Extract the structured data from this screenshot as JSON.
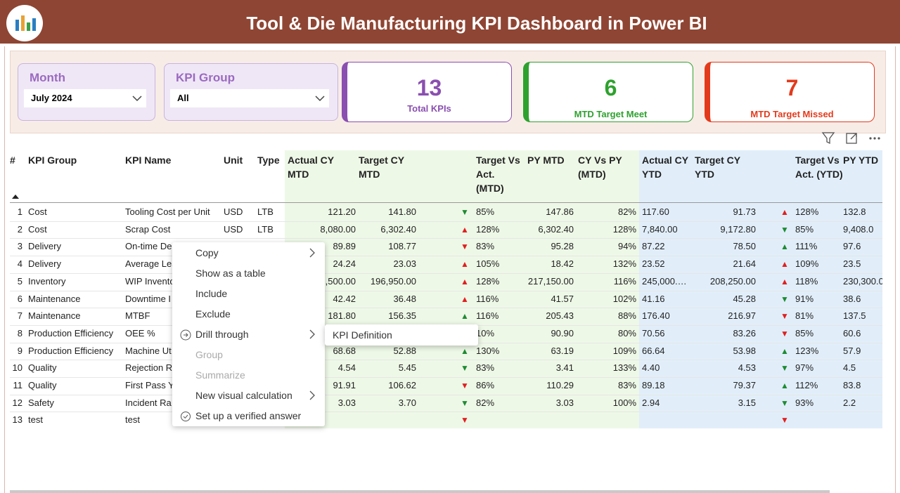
{
  "header": {
    "title": "Tool & Die Manufacturing KPI Dashboard in Power BI"
  },
  "slicers": [
    {
      "label": "Month",
      "value": "July 2024"
    },
    {
      "label": "KPI Group",
      "value": "All"
    }
  ],
  "cards": [
    {
      "value": 13,
      "label": "Total KPIs",
      "color": "#8a4fb0"
    },
    {
      "value": 6,
      "label": "MTD Target Meet",
      "color": "#2ea12e"
    },
    {
      "value": 7,
      "label": "MTD Target Missed",
      "color": "#e33a1c"
    }
  ],
  "table": {
    "columns": [
      "#",
      "KPI Group",
      "KPI Name",
      "Unit",
      "Type",
      "Actual CY MTD",
      "Target CY MTD",
      null,
      "Target Vs Act. (MTD)",
      "PY MTD",
      "CY Vs PY (MTD)",
      "Actual CY YTD",
      "Target CY YTD",
      null,
      "Target Vs Act. (YTD)",
      "PY YTD"
    ],
    "rows": [
      {
        "cells": [
          1,
          "Cost",
          "Tooling Cost per Unit",
          "USD",
          "LTB",
          "121.20",
          "141.80",
          "▼",
          "85%",
          "147.86",
          "82%",
          "117.60",
          "91.73",
          "▲",
          "128%",
          "132.8"
        ],
        "arrow_colors": [
          "#1e8c32",
          "#e02020"
        ]
      },
      {
        "cells": [
          2,
          "Cost",
          "Scrap Cost",
          "USD",
          "LTB",
          "8,080.00",
          "6,302.40",
          "▲",
          "128%",
          "6,302.40",
          "128%",
          "7,840.00",
          "9,172.80",
          "▼",
          "85%",
          "9,408.0"
        ],
        "arrow_colors": [
          "#e02020",
          "#1e8c32"
        ]
      },
      {
        "cells": [
          3,
          "Delivery",
          "On-time De",
          null,
          null,
          "89.89",
          "108.77",
          "▼",
          "83%",
          "95.28",
          "94%",
          "87.22",
          "78.50",
          "▲",
          "111%",
          "97.6"
        ],
        "arrow_colors": [
          "#e02020",
          "#1e8c32"
        ]
      },
      {
        "cells": [
          4,
          "Delivery",
          "Average Lea",
          null,
          null,
          "24.24",
          "23.03",
          "▲",
          "105%",
          "18.42",
          "132%",
          "23.52",
          "21.64",
          "▲",
          "109%",
          "23.5"
        ],
        "arrow_colors": [
          "#e02020",
          "#e02020"
        ]
      },
      {
        "cells": [
          5,
          "Inventory",
          "WIP Invento",
          null,
          null,
          ",500.00",
          "196,950.00",
          "▲",
          "128%",
          "217,150.00",
          "116%",
          "245,000.…",
          "208,250.00",
          "▲",
          "118%",
          "230,300.0"
        ],
        "arrow_colors": [
          "#e02020",
          "#e02020"
        ]
      },
      {
        "cells": [
          6,
          "Maintenance",
          "Downtime I",
          null,
          null,
          "42.42",
          "36.48",
          "▲",
          "116%",
          "41.57",
          "102%",
          "41.16",
          "45.28",
          "▼",
          "91%",
          "38.6"
        ],
        "arrow_colors": [
          "#e02020",
          "#1e8c32"
        ]
      },
      {
        "cells": [
          7,
          "Maintenance",
          "MTBF",
          null,
          null,
          "181.80",
          "156.35",
          "▲",
          "116%",
          "205.43",
          "88%",
          "176.40",
          "216.97",
          "▼",
          "81%",
          "137.5"
        ],
        "arrow_colors": [
          "#1e8c32",
          "#e02020"
        ]
      },
      {
        "cells": [
          8,
          "Production Efficiency",
          "OEE %",
          null,
          null,
          null,
          null,
          null,
          "10%",
          "90.90",
          "80%",
          "70.56",
          "83.26",
          "▼",
          "85%",
          "60.6"
        ],
        "arrow_colors": [
          null,
          "#e02020"
        ]
      },
      {
        "cells": [
          9,
          "Production Efficiency",
          "Machine Ut",
          null,
          null,
          "68.68",
          "52.88",
          "▲",
          "130%",
          "63.19",
          "109%",
          "66.64",
          "53.98",
          "▲",
          "123%",
          "57.9"
        ],
        "arrow_colors": [
          "#1e8c32",
          "#1e8c32"
        ]
      },
      {
        "cells": [
          10,
          "Quality",
          "Rejection R",
          null,
          null,
          "4.54",
          "5.45",
          "▼",
          "83%",
          "3.41",
          "133%",
          "4.40",
          "4.53",
          "▼",
          "97%",
          "4.5"
        ],
        "arrow_colors": [
          "#1e8c32",
          "#1e8c32"
        ]
      },
      {
        "cells": [
          11,
          "Quality",
          "First Pass Yi",
          null,
          null,
          "91.91",
          "106.62",
          "▼",
          "86%",
          "110.29",
          "83%",
          "89.18",
          "79.37",
          "▲",
          "112%",
          "83.8"
        ],
        "arrow_colors": [
          "#e02020",
          "#1e8c32"
        ]
      },
      {
        "cells": [
          12,
          "Safety",
          "Incident Ra",
          null,
          null,
          "3.03",
          "3.70",
          "▼",
          "82%",
          "3.03",
          "100%",
          "2.94",
          "3.15",
          "▼",
          "93%",
          "2.2"
        ],
        "arrow_colors": [
          "#1e8c32",
          "#1e8c32"
        ]
      },
      {
        "cells": [
          13,
          "test",
          "test",
          null,
          null,
          null,
          null,
          "▼",
          null,
          null,
          null,
          null,
          null,
          "▼",
          null,
          null
        ],
        "arrow_colors": [
          "#e02020",
          "#e02020"
        ]
      }
    ]
  },
  "context_menu": {
    "items": [
      {
        "label": "Copy",
        "enabled": true
      },
      {
        "label": "Show as a table",
        "enabled": true
      },
      {
        "label": "Include",
        "enabled": true
      },
      {
        "label": "Exclude",
        "enabled": true
      },
      {
        "label": "Drill through",
        "enabled": true
      },
      {
        "label": "Group",
        "enabled": false
      },
      {
        "label": "Summarize",
        "enabled": false
      },
      {
        "label": "New visual calculation",
        "enabled": true
      },
      {
        "label": "Set up a verified answer",
        "enabled": true
      }
    ],
    "submenu": [
      "KPI Definition"
    ]
  }
}
